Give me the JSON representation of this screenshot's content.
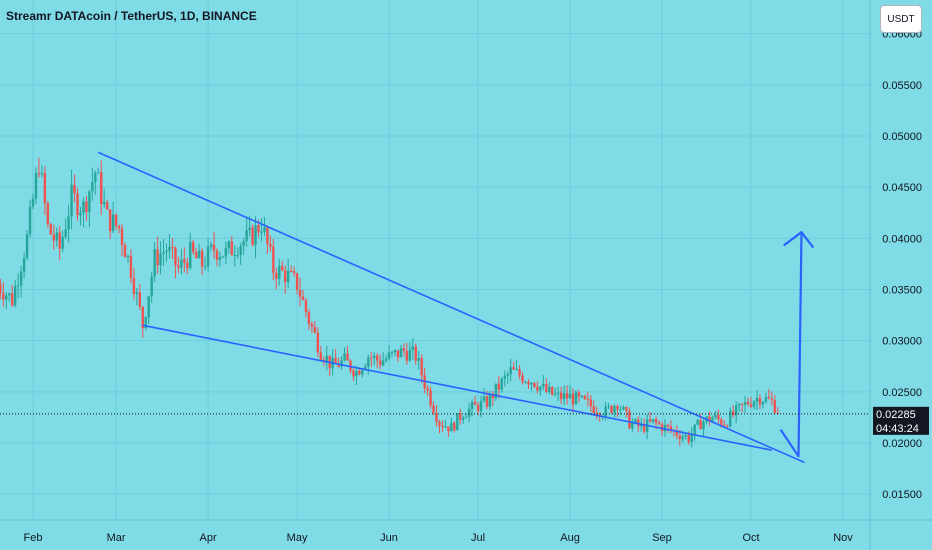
{
  "header": {
    "title": "Streamr DATAcoin / TetherUS, 1D, BINANCE",
    "currency_button": "USDT"
  },
  "price_badge": {
    "price": "0.02285",
    "countdown": "04:43:24",
    "color": "#131722"
  },
  "colors": {
    "background": "#7fdbe6",
    "up": "#26a69a",
    "down": "#ef5350",
    "trendline": "#2962ff",
    "arrow": "#2962ff",
    "grid": "#6ccfdb"
  },
  "chart_data": {
    "type": "candlestick",
    "title": "Streamr DATAcoin / TetherUS, 1D, BINANCE",
    "xlabel": "",
    "ylabel": "",
    "x_ticks": [
      "Feb",
      "Mar",
      "Apr",
      "May",
      "Jun",
      "Jul",
      "Aug",
      "Sep",
      "Oct",
      "Nov"
    ],
    "y_ticks": [
      "0.06000",
      "0.05500",
      "0.05000",
      "0.04500",
      "0.04000",
      "0.03500",
      "0.03000",
      "0.02500",
      "0.02000",
      "0.01500"
    ],
    "ylim": [
      0.0125,
      0.0605
    ],
    "close_series": [
      {
        "date": "2021-01-20",
        "close": 0.0355
      },
      {
        "date": "2021-01-25",
        "close": 0.034
      },
      {
        "date": "2021-01-30",
        "close": 0.04
      },
      {
        "date": "2021-02-03",
        "close": 0.0475
      },
      {
        "date": "2021-02-06",
        "close": 0.041
      },
      {
        "date": "2021-02-10",
        "close": 0.039
      },
      {
        "date": "2021-02-14",
        "close": 0.044
      },
      {
        "date": "2021-02-18",
        "close": 0.043
      },
      {
        "date": "2021-02-22",
        "close": 0.0465
      },
      {
        "date": "2021-02-26",
        "close": 0.042
      },
      {
        "date": "2021-03-02",
        "close": 0.041
      },
      {
        "date": "2021-03-06",
        "close": 0.037
      },
      {
        "date": "2021-03-10",
        "close": 0.0315
      },
      {
        "date": "2021-03-14",
        "close": 0.038
      },
      {
        "date": "2021-03-18",
        "close": 0.039
      },
      {
        "date": "2021-03-22",
        "close": 0.037
      },
      {
        "date": "2021-03-26",
        "close": 0.0385
      },
      {
        "date": "2021-03-30",
        "close": 0.0375
      },
      {
        "date": "2021-04-03",
        "close": 0.039
      },
      {
        "date": "2021-04-07",
        "close": 0.0385
      },
      {
        "date": "2021-04-11",
        "close": 0.0395
      },
      {
        "date": "2021-04-15",
        "close": 0.04
      },
      {
        "date": "2021-04-19",
        "close": 0.0415
      },
      {
        "date": "2021-04-23",
        "close": 0.037
      },
      {
        "date": "2021-04-27",
        "close": 0.0365
      },
      {
        "date": "2021-05-01",
        "close": 0.0355
      },
      {
        "date": "2021-05-05",
        "close": 0.032
      },
      {
        "date": "2021-05-09",
        "close": 0.029
      },
      {
        "date": "2021-05-13",
        "close": 0.0275
      },
      {
        "date": "2021-05-17",
        "close": 0.028
      },
      {
        "date": "2021-05-21",
        "close": 0.027
      },
      {
        "date": "2021-05-25",
        "close": 0.0285
      },
      {
        "date": "2021-05-29",
        "close": 0.028
      },
      {
        "date": "2021-06-02",
        "close": 0.0285
      },
      {
        "date": "2021-06-06",
        "close": 0.029
      },
      {
        "date": "2021-06-10",
        "close": 0.0285
      },
      {
        "date": "2021-06-14",
        "close": 0.025
      },
      {
        "date": "2021-06-18",
        "close": 0.022
      },
      {
        "date": "2021-06-22",
        "close": 0.0215
      },
      {
        "date": "2021-06-26",
        "close": 0.023
      },
      {
        "date": "2021-06-30",
        "close": 0.0235
      },
      {
        "date": "2021-07-04",
        "close": 0.024
      },
      {
        "date": "2021-07-08",
        "close": 0.0255
      },
      {
        "date": "2021-07-12",
        "close": 0.027
      },
      {
        "date": "2021-07-16",
        "close": 0.0265
      },
      {
        "date": "2021-07-20",
        "close": 0.026
      },
      {
        "date": "2021-07-24",
        "close": 0.025
      },
      {
        "date": "2021-07-28",
        "close": 0.0245
      },
      {
        "date": "2021-08-01",
        "close": 0.0245
      },
      {
        "date": "2021-08-05",
        "close": 0.024
      },
      {
        "date": "2021-08-09",
        "close": 0.0235
      },
      {
        "date": "2021-08-13",
        "close": 0.023
      },
      {
        "date": "2021-08-17",
        "close": 0.024
      },
      {
        "date": "2021-08-21",
        "close": 0.022
      },
      {
        "date": "2021-08-25",
        "close": 0.0215
      },
      {
        "date": "2021-08-29",
        "close": 0.022
      },
      {
        "date": "2021-09-02",
        "close": 0.0215
      },
      {
        "date": "2021-09-06",
        "close": 0.021
      },
      {
        "date": "2021-09-10",
        "close": 0.0205
      },
      {
        "date": "2021-09-14",
        "close": 0.022
      },
      {
        "date": "2021-09-18",
        "close": 0.0225
      },
      {
        "date": "2021-09-22",
        "close": 0.022
      },
      {
        "date": "2021-09-26",
        "close": 0.023
      },
      {
        "date": "2021-09-30",
        "close": 0.024
      },
      {
        "date": "2021-10-04",
        "close": 0.0245
      },
      {
        "date": "2021-10-08",
        "close": 0.024
      },
      {
        "date": "2021-10-11",
        "close": 0.02285
      }
    ]
  }
}
